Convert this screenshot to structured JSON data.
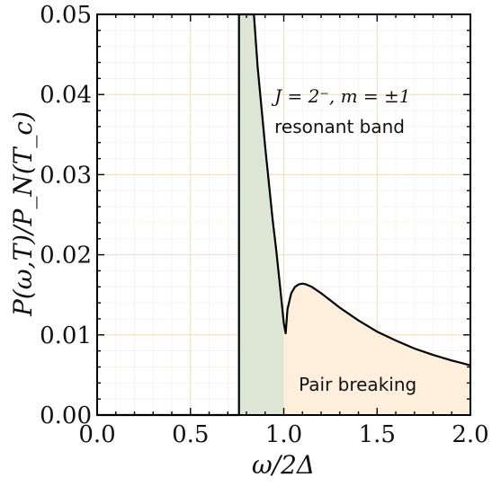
{
  "chart_data": {
    "type": "line",
    "title": "",
    "xlabel": "ω/2Δ",
    "ylabel": "P(ω,T)/P_N(T_c)",
    "xlim": [
      0.0,
      2.0
    ],
    "ylim": [
      0.0,
      0.05
    ],
    "grid": true,
    "xticks": [
      "0.0",
      "0.5",
      "1.0",
      "1.5",
      "2.0"
    ],
    "yticks": [
      "0.00",
      "0.01",
      "0.02",
      "0.03",
      "0.04",
      "0.05"
    ],
    "series": [
      {
        "color": "#000000",
        "x": [
          0.0,
          0.76,
          0.76,
          0.84,
          0.86,
          0.88,
          0.9,
          0.92,
          0.94,
          0.96,
          0.98,
          1.0,
          1.01,
          1.02,
          1.04,
          1.06,
          1.08,
          1.1,
          1.12,
          1.15,
          1.2,
          1.25,
          1.3,
          1.4,
          1.5,
          1.6,
          1.7,
          1.8,
          1.9,
          2.0
        ],
        "y": [
          0.0,
          0.0,
          0.05,
          0.05,
          0.0435,
          0.0385,
          0.0335,
          0.029,
          0.0245,
          0.0205,
          0.016,
          0.0115,
          0.0102,
          0.0132,
          0.0152,
          0.016,
          0.0163,
          0.0164,
          0.0163,
          0.016,
          0.0152,
          0.0143,
          0.0134,
          0.0118,
          0.0104,
          0.0093,
          0.0083,
          0.0075,
          0.0068,
          0.0062
        ]
      }
    ],
    "shaded_regions": [
      {
        "label": "",
        "color": "#dde6d4",
        "x_from": 0.76,
        "x_to": 1.0
      },
      {
        "label": "Pair breaking",
        "color": "#fdefdc",
        "x_from": 1.0,
        "x_to": 2.0
      }
    ],
    "annotations": [
      {
        "text": "J = 2⁻, m = ±1",
        "style": "math",
        "x": 0.95,
        "y": 0.039
      },
      {
        "text": "resonant band",
        "style": "text",
        "x": 0.95,
        "y": 0.0352
      },
      {
        "text": "Pair breaking",
        "style": "text",
        "x": 1.08,
        "y": 0.003
      }
    ]
  }
}
